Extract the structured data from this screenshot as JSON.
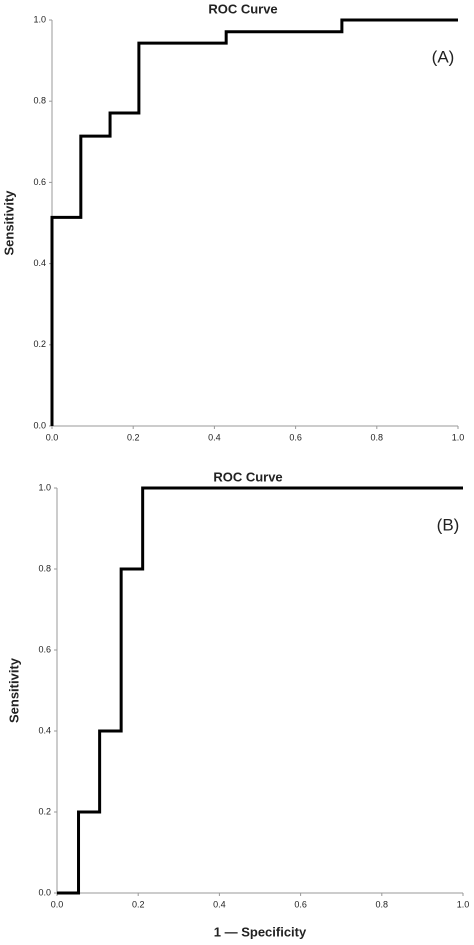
{
  "chart_data": [
    {
      "type": "line",
      "title": "ROC Curve",
      "annotation": "(A)",
      "y_label": "Sensitivity",
      "color": "#000000",
      "x": [
        0,
        0,
        0.071,
        0.071,
        0.143,
        0.143,
        0.214,
        0.214,
        0.429,
        0.429,
        0.714,
        0.714,
        1
      ],
      "values": [
        0,
        0.514,
        0.514,
        0.714,
        0.714,
        0.771,
        0.771,
        0.943,
        0.943,
        0.971,
        0.971,
        1,
        1
      ],
      "xlim": [
        0,
        1
      ],
      "ylim": [
        0,
        1
      ],
      "xticks": [
        {
          "value": 0,
          "label": "0.0"
        },
        0.2,
        0.4,
        0.6,
        0.8,
        {
          "value": 1,
          "label": "1.0"
        }
      ],
      "yticks": [
        {
          "value": 0,
          "label": "0.0"
        },
        0.2,
        0.4,
        0.6,
        0.8,
        {
          "value": 1,
          "label": "1.0"
        }
      ]
    },
    {
      "type": "line",
      "title": "ROC Curve",
      "annotation": "(B)",
      "y_label": "Sensitivity",
      "x_label": "1 — Specificity",
      "color": "#000000",
      "x": [
        0,
        0.053,
        0.053,
        0.105,
        0.105,
        0.158,
        0.158,
        0.211,
        0.211,
        1
      ],
      "values": [
        0,
        0,
        0.2,
        0.2,
        0.4,
        0.4,
        0.8,
        0.8,
        1,
        1
      ],
      "xlim": [
        0,
        1
      ],
      "ylim": [
        0,
        1
      ],
      "xticks": [
        {
          "value": 0,
          "label": "0.0"
        },
        0.2,
        0.4,
        0.6,
        0.8,
        {
          "value": 1,
          "label": "1.0"
        }
      ],
      "yticks": [
        {
          "value": 0,
          "label": "0.0"
        },
        0.2,
        0.4,
        0.6,
        0.8,
        {
          "value": 1,
          "label": "1.0"
        }
      ]
    }
  ]
}
